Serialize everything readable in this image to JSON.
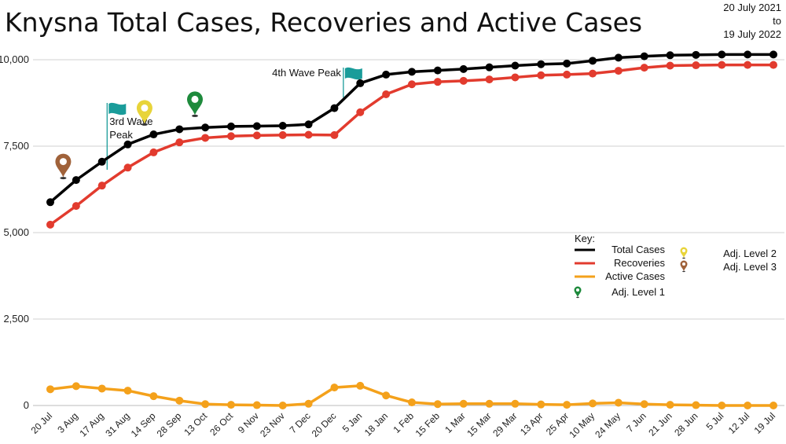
{
  "chart_data": {
    "type": "line",
    "title": "Knysna Total Cases, Recoveries and Active Cases",
    "date_range": {
      "line1": "20 July 2021",
      "line2": "to",
      "line3": "19 July 2022"
    },
    "xlabel": "",
    "ylabel": "",
    "ylim": [
      0,
      10000
    ],
    "yticks": [
      0,
      2500,
      5000,
      7500,
      10000
    ],
    "ytick_labels": [
      "0",
      "2,500",
      "5,000",
      "7,500",
      "10,000"
    ],
    "grid": true,
    "legend_position": "right",
    "categories": [
      "20 Jul",
      "3 Aug",
      "17 Aug",
      "31 Aug",
      "14 Sep",
      "28 Sep",
      "13 Oct",
      "26 Oct",
      "9 Nov",
      "23 Nov",
      "7 Dec",
      "20 Dec",
      "5 Jan",
      "18 Jan",
      "1 Feb",
      "15 Feb",
      "1 Mar",
      "15 Mar",
      "29 Mar",
      "13 Apr",
      "25 Apr",
      "10 May",
      "24 May",
      "7 Jun",
      "21 Jun",
      "28 Jun",
      "5 Jul",
      "12 Jul",
      "19 Jul"
    ],
    "series": [
      {
        "name": "Total Cases",
        "color": "#000000",
        "values": [
          5880,
          6520,
          7050,
          7550,
          7840,
          7990,
          8040,
          8070,
          8080,
          8090,
          8130,
          8600,
          9320,
          9570,
          9650,
          9690,
          9730,
          9780,
          9830,
          9870,
          9890,
          9970,
          10060,
          10100,
          10130,
          10140,
          10150,
          10150,
          10150
        ]
      },
      {
        "name": "Recoveries",
        "color": "#e23b2e",
        "values": [
          5230,
          5770,
          6360,
          6880,
          7320,
          7610,
          7740,
          7790,
          7810,
          7820,
          7830,
          7820,
          8480,
          9000,
          9290,
          9360,
          9390,
          9430,
          9490,
          9550,
          9570,
          9600,
          9680,
          9770,
          9830,
          9840,
          9850,
          9850,
          9850
        ]
      },
      {
        "name": "Active Cases",
        "color": "#f4a11b",
        "values": [
          470,
          560,
          490,
          430,
          270,
          140,
          40,
          20,
          10,
          0,
          50,
          520,
          570,
          290,
          90,
          40,
          50,
          50,
          50,
          30,
          20,
          60,
          80,
          40,
          20,
          10,
          0,
          0,
          0
        ]
      }
    ],
    "annotations": [
      {
        "label": "3rd Wave\nPeak",
        "category_index": 1.5,
        "kind": "flag",
        "color": "#1a9c9a"
      },
      {
        "label": "4th Wave Peak",
        "category_index": 11.5,
        "kind": "flag",
        "color": "#1a9c9a"
      }
    ],
    "level_markers": [
      {
        "name": "Adj. Level 3",
        "category_index": 0.5,
        "value": 6600,
        "color": "#a0623a"
      },
      {
        "name": "Adj. Level 2",
        "category_index": 3.65,
        "value": 8150,
        "color": "#e8d43a"
      },
      {
        "name": "Adj. Level 1",
        "category_index": 5.6,
        "value": 8400,
        "color": "#1e8a3c"
      }
    ],
    "legend": {
      "title": "Key:",
      "entries": [
        "Total Cases",
        "Recoveries",
        "Active Cases",
        "Adj. Level 1",
        "Adj. Level 2",
        "Adj. Level 3"
      ]
    }
  }
}
